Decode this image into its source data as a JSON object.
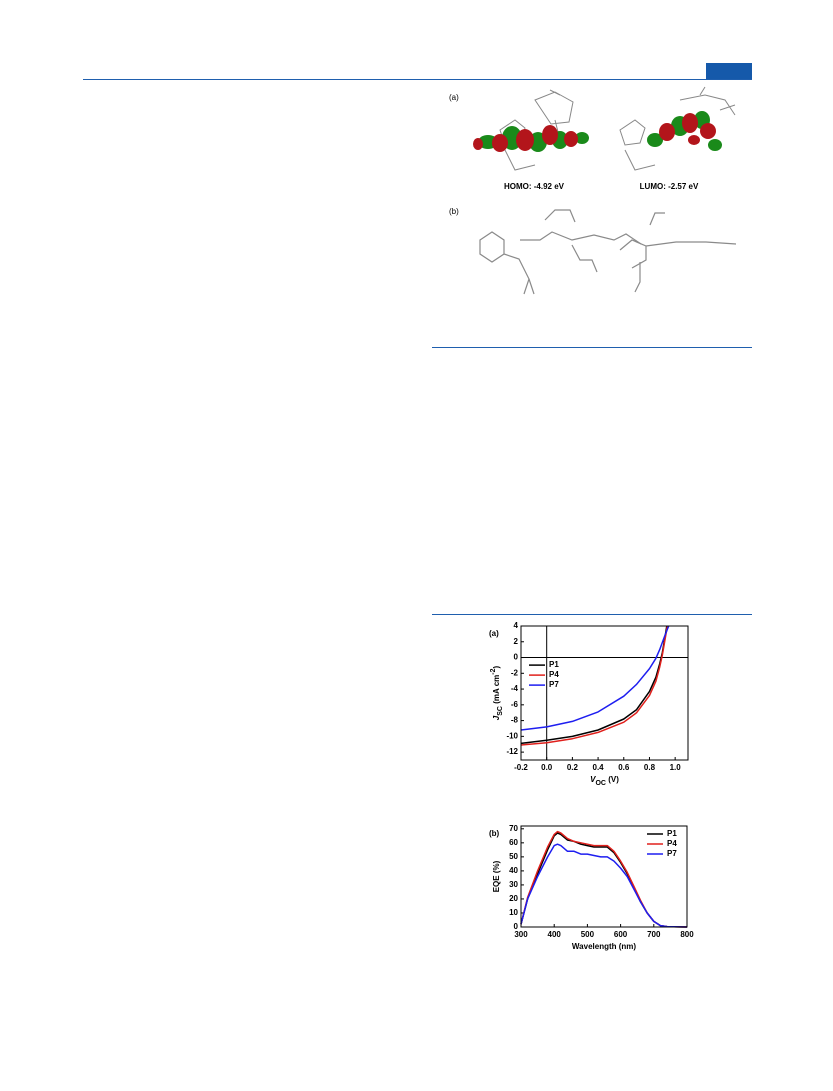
{
  "figure": {
    "panel_a": "(a)",
    "homo": "HOMO: -4.92 eV",
    "lumo": "LUMO: -2.57 eV",
    "panel_b": "(b)"
  },
  "chart_data": [
    {
      "type": "line",
      "label": "(a)",
      "xlabel": [
        "V",
        "OC",
        " (V)"
      ],
      "ylabel": [
        "J",
        "SC",
        " (mA cm",
        "-2",
        ")"
      ],
      "xlim": [
        -0.2,
        1.1
      ],
      "ylim": [
        -13,
        4
      ],
      "xticks": [
        {
          "value": -0.2,
          "label": "-0.2"
        },
        {
          "value": 0,
          "label": "0.0"
        },
        0.2,
        0.4,
        0.6,
        0.8,
        {
          "value": 1,
          "label": "1.0"
        }
      ],
      "yticks": [
        4,
        2,
        0,
        -2,
        -4,
        -6,
        -8,
        -10,
        -12
      ],
      "legend": "top-left",
      "grid": false,
      "series": [
        {
          "name": "P1",
          "color": "#000000",
          "x": [
            -0.2,
            0,
            0.2,
            0.4,
            0.6,
            0.7,
            0.8,
            0.85,
            0.88,
            0.9,
            0.92,
            0.935
          ],
          "values": [
            -10.9,
            -10.5,
            -10.0,
            -9.2,
            -7.8,
            -6.6,
            -4.3,
            -2.5,
            -0.8,
            0.6,
            2.5,
            4
          ]
        },
        {
          "name": "P4",
          "color": "#e0201c",
          "x": [
            -0.2,
            0,
            0.2,
            0.4,
            0.6,
            0.7,
            0.8,
            0.85,
            0.88,
            0.9,
            0.92,
            0.94
          ],
          "values": [
            -11.1,
            -10.8,
            -10.3,
            -9.5,
            -8.2,
            -7.0,
            -4.8,
            -3.0,
            -1.2,
            0.3,
            2.2,
            4
          ]
        },
        {
          "name": "P7",
          "color": "#1e1ef0",
          "x": [
            -0.2,
            0,
            0.2,
            0.4,
            0.6,
            0.7,
            0.8,
            0.85,
            0.88,
            0.92,
            0.95
          ],
          "values": [
            -9.2,
            -8.8,
            -8.1,
            -6.9,
            -4.9,
            -3.4,
            -1.4,
            -0.1,
            1.0,
            2.8,
            4
          ]
        }
      ]
    },
    {
      "type": "line",
      "label": "(b)",
      "xlabel": [
        "Wavelength (nm)"
      ],
      "ylabel": [
        "EQE (%)"
      ],
      "xlim": [
        300,
        800
      ],
      "ylim": [
        0,
        72
      ],
      "xticks": [
        300,
        400,
        500,
        600,
        700,
        800
      ],
      "yticks": [
        0,
        10,
        20,
        30,
        40,
        50,
        60,
        70
      ],
      "legend": "top-right",
      "grid": false,
      "series": [
        {
          "name": "P1",
          "color": "#000000",
          "x": [
            300,
            320,
            350,
            380,
            400,
            410,
            420,
            440,
            460,
            480,
            500,
            520,
            540,
            560,
            580,
            600,
            620,
            640,
            660,
            680,
            700,
            720,
            740,
            800
          ],
          "values": [
            2,
            20,
            38,
            55,
            65,
            67,
            66,
            62,
            61,
            59,
            58,
            57,
            57,
            57,
            53,
            46,
            38,
            28,
            18,
            10,
            4,
            1,
            0.3,
            0
          ]
        },
        {
          "name": "P4",
          "color": "#e0201c",
          "x": [
            300,
            320,
            350,
            380,
            400,
            410,
            420,
            440,
            460,
            480,
            500,
            520,
            540,
            560,
            580,
            600,
            620,
            640,
            660,
            680,
            700,
            720,
            740,
            800
          ],
          "values": [
            2,
            21,
            40,
            57,
            66,
            68,
            67,
            63,
            61,
            60,
            59,
            58,
            58,
            58,
            54,
            47,
            39,
            29,
            19,
            10,
            4,
            1,
            0.3,
            0
          ]
        },
        {
          "name": "P7",
          "color": "#1e1ef0",
          "x": [
            300,
            320,
            350,
            380,
            400,
            410,
            420,
            440,
            460,
            480,
            500,
            520,
            540,
            560,
            580,
            600,
            620,
            640,
            660,
            680,
            700,
            720,
            740,
            800
          ],
          "values": [
            2,
            20,
            36,
            50,
            58,
            59,
            58,
            54,
            54,
            52,
            52,
            51,
            50,
            50,
            47,
            42,
            36,
            27,
            18,
            10,
            4,
            1,
            0.3,
            0
          ]
        }
      ]
    }
  ]
}
